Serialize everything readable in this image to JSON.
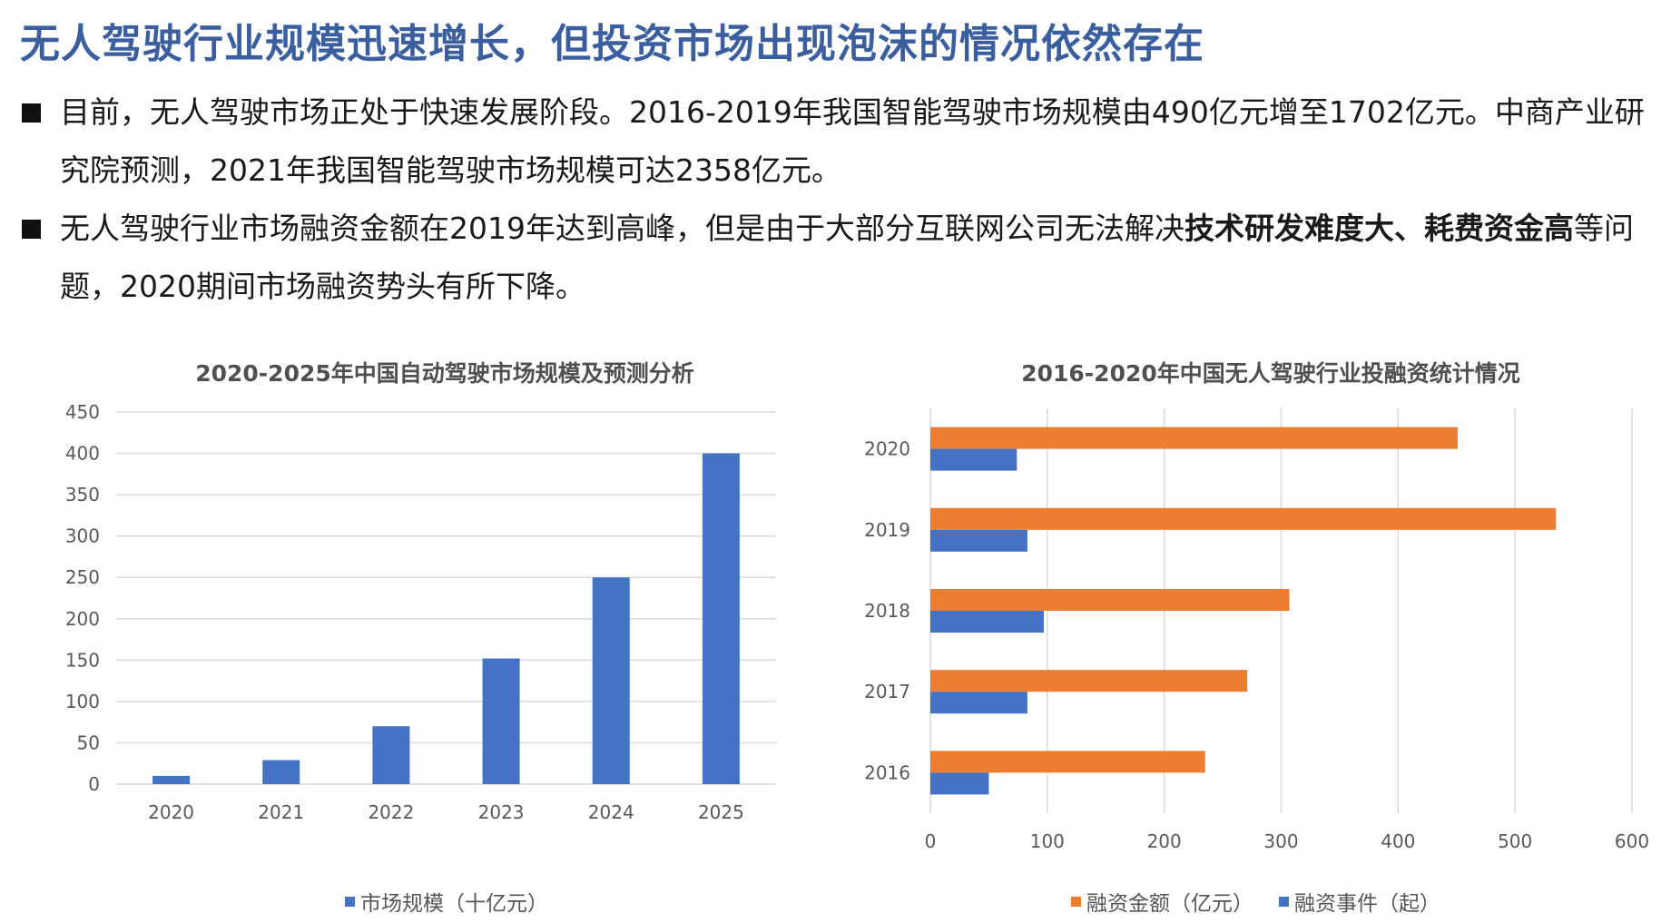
{
  "page_title": "无人驾驶行业规模迅速增长，但投资市场出现泡沫的情况依然存在",
  "bullets": [
    {
      "text": "目前，无人驾驶市场正处于快速发展阶段。2016-2019年我国智能驾驶市场规模由490亿元增至1702亿元。中商产业研究院预测，2021年我国智能驾驶市场规模可达2358亿元。"
    },
    {
      "text_before": "无人驾驶行业市场融资金额在2019年达到高峰，但是由于大部分互联网公司无法解决",
      "text_bold": "技术研发难度大、耗费资金高",
      "text_after": "等问题，2020期间市场融资势头有所下降。"
    }
  ],
  "colors": {
    "blue": "#4472C4",
    "orange": "#ED7D31",
    "grid": "#d9d9d9",
    "axis_text": "#595959"
  },
  "chart_data": [
    {
      "type": "bar",
      "title": "2020-2025年中国自动驾驶市场规模及预测分析",
      "categories": [
        "2020",
        "2021",
        "2022",
        "2023",
        "2024",
        "2025"
      ],
      "series": [
        {
          "name": "市场规模（十亿元）",
          "values": [
            10,
            29,
            70,
            152,
            250,
            400
          ]
        }
      ],
      "ylim": [
        0,
        450
      ],
      "yticks": [
        0,
        50,
        100,
        150,
        200,
        250,
        300,
        350,
        400,
        450
      ],
      "legend": "bottom"
    },
    {
      "type": "bar",
      "orientation": "horizontal",
      "title": "2016-2020年中国无人驾驶行业投融资统计情况",
      "categories": [
        "2016",
        "2017",
        "2018",
        "2019",
        "2020"
      ],
      "series": [
        {
          "name": "融资金额（亿元）",
          "values": [
            235,
            271,
            307,
            535,
            451
          ]
        },
        {
          "name": "融资事件（起）",
          "values": [
            50,
            83,
            97,
            83,
            74
          ]
        }
      ],
      "xlim": [
        0,
        600
      ],
      "xticks": [
        0,
        100,
        200,
        300,
        400,
        500,
        600
      ],
      "legend": "bottom"
    }
  ]
}
